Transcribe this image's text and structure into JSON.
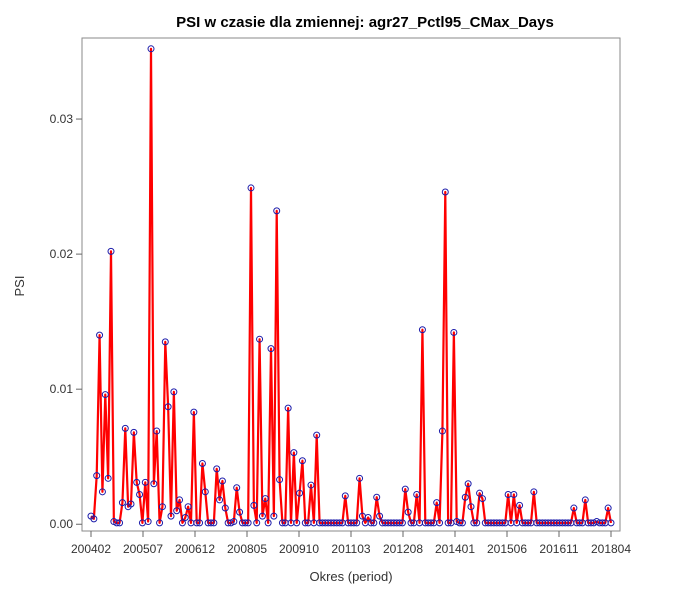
{
  "chart_data": {
    "type": "line",
    "title": "PSI w czasie dla zmiennej: agr27_Pctl95_CMax_Days",
    "xlabel": "Okres (period)",
    "ylabel": "PSI",
    "ylim": [
      -0.0005,
      0.036
    ],
    "yticks": [
      0.0,
      0.01,
      0.02,
      0.03
    ],
    "ytick_labels": [
      "0.00",
      "0.01",
      "0.02",
      "0.03"
    ],
    "x_start": "200402",
    "x_end": "201806",
    "xtick_labels": [
      "200402",
      "200507",
      "200612",
      "200805",
      "200910",
      "201103",
      "201208",
      "201401",
      "201506",
      "201611",
      "201804"
    ],
    "line_color": "#ff0000",
    "marker_color": "#1c1caa",
    "grid": false,
    "series": [
      {
        "values": [
          0.0006,
          0.0004,
          0.0036,
          0.014,
          0.0024,
          0.0096,
          0.0034,
          0.0202,
          0.0002,
          0.0001,
          0.0001,
          0.0016,
          0.0071,
          0.0013,
          0.0015,
          0.0068,
          0.0031,
          0.0022,
          0.0001,
          0.0031,
          0.0002,
          0.0352,
          0.003,
          0.0069,
          0.0001,
          0.0013,
          0.0135,
          0.0087,
          0.0006,
          0.0098,
          0.001,
          0.0018,
          0.0001,
          0.0005,
          0.0013,
          0.0001,
          0.0083,
          0.0001,
          0.0001,
          0.0045,
          0.0024,
          0.0001,
          0.0001,
          0.0001,
          0.0041,
          0.0018,
          0.0032,
          0.0012,
          0.0001,
          0.0001,
          0.0002,
          0.0027,
          0.0009,
          0.0001,
          0.0001,
          0.0001,
          0.0249,
          0.0014,
          0.0001,
          0.0137,
          0.0006,
          0.0019,
          0.0001,
          0.013,
          0.0006,
          0.0232,
          0.0033,
          0.0001,
          0.0001,
          0.0086,
          0.0001,
          0.0053,
          0.0001,
          0.0023,
          0.0047,
          0.0001,
          0.0001,
          0.0029,
          0.0001,
          0.0066,
          0.0001,
          0.0001,
          0.0001,
          0.0001,
          0.0001,
          0.0001,
          0.0001,
          0.0001,
          0.0001,
          0.0021,
          0.0001,
          0.0001,
          0.0001,
          0.0001,
          0.0034,
          0.0006,
          0.0001,
          0.0005,
          0.0001,
          0.0001,
          0.002,
          0.0006,
          0.0001,
          0.0001,
          0.0001,
          0.0001,
          0.0001,
          0.0001,
          0.0001,
          0.0001,
          0.0026,
          0.0009,
          0.0001,
          0.0001,
          0.0022,
          0.0001,
          0.0144,
          0.0001,
          0.0001,
          0.0001,
          0.0001,
          0.0016,
          0.0001,
          0.0069,
          0.0246,
          0.0001,
          0.0001,
          0.0142,
          0.0002,
          0.0001,
          0.0001,
          0.002,
          0.003,
          0.0013,
          0.0001,
          0.0001,
          0.0023,
          0.0019,
          0.0001,
          0.0001,
          0.0001,
          0.0001,
          0.0001,
          0.0001,
          0.0001,
          0.0001,
          0.0022,
          0.0001,
          0.0022,
          0.0001,
          0.0014,
          0.0001,
          0.0001,
          0.0001,
          0.0001,
          0.0024,
          0.0001,
          0.0001,
          0.0001,
          0.0001,
          0.0001,
          0.0001,
          0.0001,
          0.0001,
          0.0001,
          0.0001,
          0.0001,
          0.0001,
          0.0001,
          0.0012,
          0.0001,
          0.0001,
          0.0001,
          0.0018,
          0.0001,
          0.0001,
          0.0001,
          0.0002,
          0.0001,
          0.0001,
          0.0001,
          0.0012,
          0.0001
        ]
      }
    ]
  }
}
